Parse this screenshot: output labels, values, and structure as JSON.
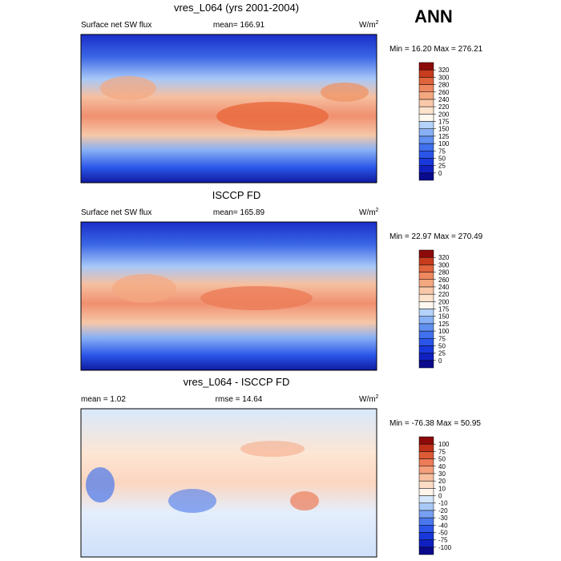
{
  "title": "ANN",
  "panels": [
    {
      "title": "vres_L064 (yrs 2001-2004)",
      "left_label": "Surface net SW flux",
      "center_label": "mean= 166.91",
      "units": "W/m",
      "units_sup": "2",
      "minmax": "Min =  16.20 Max = 276.21",
      "colorbar": {
        "levels": [
          0,
          25,
          50,
          75,
          100,
          125,
          150,
          175,
          200,
          220,
          240,
          260,
          280,
          300,
          320
        ],
        "colors": [
          "#0a0a8c",
          "#1020c0",
          "#1838dc",
          "#2a55e8",
          "#4070ec",
          "#6090f0",
          "#88b0f5",
          "#b4d2fa",
          "#fff8f0",
          "#fde2cc",
          "#f8c8a8",
          "#f4a880",
          "#ee8860",
          "#e0643c",
          "#c83c1e",
          "#8c0a0a"
        ]
      }
    },
    {
      "title": "ISCCP FD",
      "left_label": "Surface net SW flux",
      "center_label": "mean= 165.89",
      "units": "W/m",
      "units_sup": "2",
      "minmax": "Min =  22.97 Max = 270.49",
      "colorbar": {
        "levels": [
          0,
          25,
          50,
          75,
          100,
          125,
          150,
          175,
          200,
          220,
          240,
          260,
          280,
          300,
          320
        ],
        "colors": [
          "#0a0a8c",
          "#1020c0",
          "#1838dc",
          "#2a55e8",
          "#4070ec",
          "#6090f0",
          "#88b0f5",
          "#b4d2fa",
          "#fff8f0",
          "#fde2cc",
          "#f8c8a8",
          "#f4a880",
          "#ee8860",
          "#e0643c",
          "#c83c1e",
          "#8c0a0a"
        ]
      }
    },
    {
      "title": "vres_L064 - ISCCP FD",
      "left_label": "mean =   1.02",
      "center_label": "rmse =  14.64",
      "units": "W/m",
      "units_sup": "2",
      "minmax": "Min = -76.38 Max =  50.95",
      "colorbar": {
        "levels": [
          -100,
          -75,
          -50,
          -40,
          -30,
          -20,
          -10,
          0,
          10,
          20,
          30,
          40,
          50,
          75,
          100
        ],
        "colors": [
          "#0a0a8c",
          "#1020c0",
          "#1838dc",
          "#2a55e8",
          "#4a78ec",
          "#78a0f2",
          "#a8c8f8",
          "#d4e6fc",
          "#fff4ea",
          "#fcdcc4",
          "#f8c0a0",
          "#f4a07c",
          "#ec7c58",
          "#dc5a36",
          "#c03018",
          "#8c0a0a"
        ]
      }
    }
  ]
}
